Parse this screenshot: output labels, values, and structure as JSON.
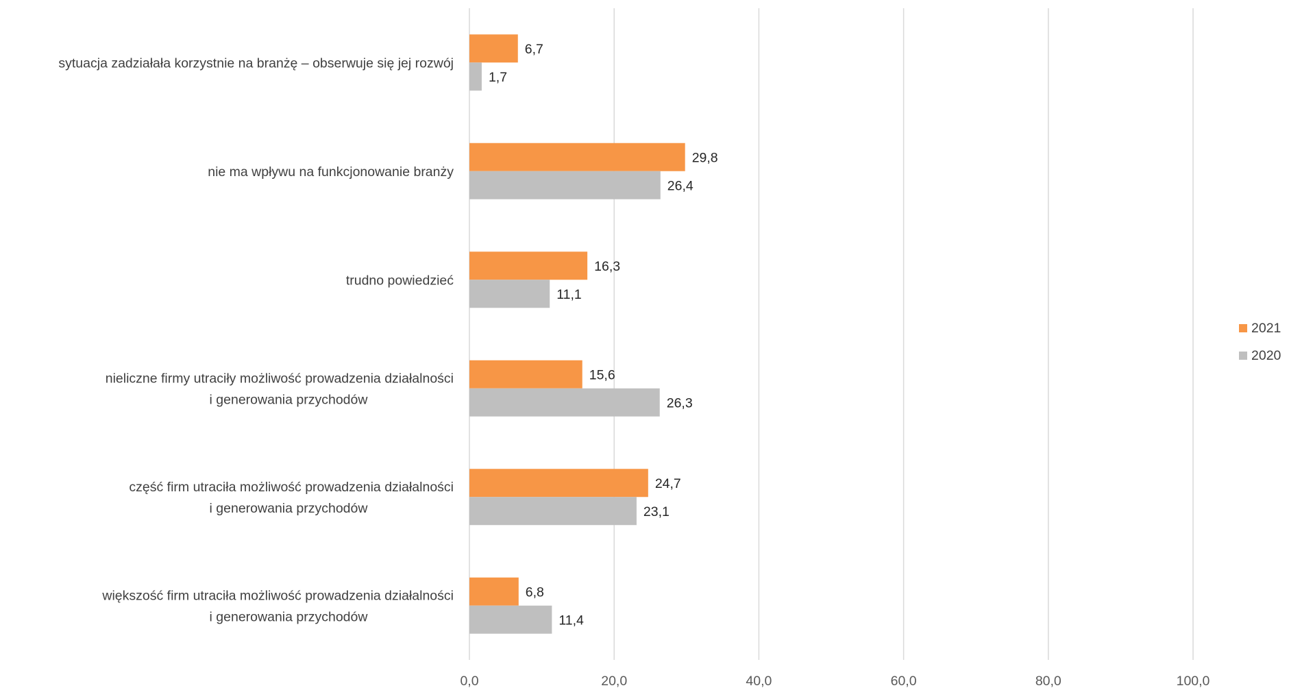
{
  "chart_data": {
    "type": "bar",
    "orientation": "horizontal",
    "categories": [
      [
        "sytuacja zadziałała korzystnie na branżę – obserwuje się jej rozwój"
      ],
      [
        "nie ma wpływu na funkcjonowanie branży"
      ],
      [
        "trudno powiedzieć"
      ],
      [
        "nieliczne firmy utraciły możliwość prowadzenia działalności",
        "i generowania przychodów"
      ],
      [
        "część firm utraciła możliwość prowadzenia działalności",
        "i generowania przychodów"
      ],
      [
        "większość firm utraciła możliwość prowadzenia działalności",
        "i generowania przychodów"
      ]
    ],
    "series": [
      {
        "name": "2021",
        "color": "#F79646",
        "values": [
          6.7,
          29.8,
          16.3,
          15.6,
          24.7,
          6.8
        ],
        "labels": [
          "6,7",
          "29,8",
          "16,3",
          "15,6",
          "24,7",
          "6,8"
        ]
      },
      {
        "name": "2020",
        "color": "#BFBFBF",
        "values": [
          1.7,
          26.4,
          11.1,
          26.3,
          23.1,
          11.4
        ],
        "labels": [
          "1,7",
          "26,4",
          "11,1",
          "26,3",
          "23,1",
          "11,4"
        ]
      }
    ],
    "xlim": [
      0,
      100
    ],
    "xticks": [
      0,
      20,
      40,
      60,
      80,
      100
    ],
    "xtick_labels": [
      "0,0",
      "20,0",
      "40,0",
      "60,0",
      "80,0",
      "100,0"
    ],
    "grid": "vertical",
    "legend": {
      "position": "right",
      "order": [
        "2021",
        "2020"
      ]
    },
    "title": "",
    "xlabel": "",
    "ylabel": ""
  }
}
